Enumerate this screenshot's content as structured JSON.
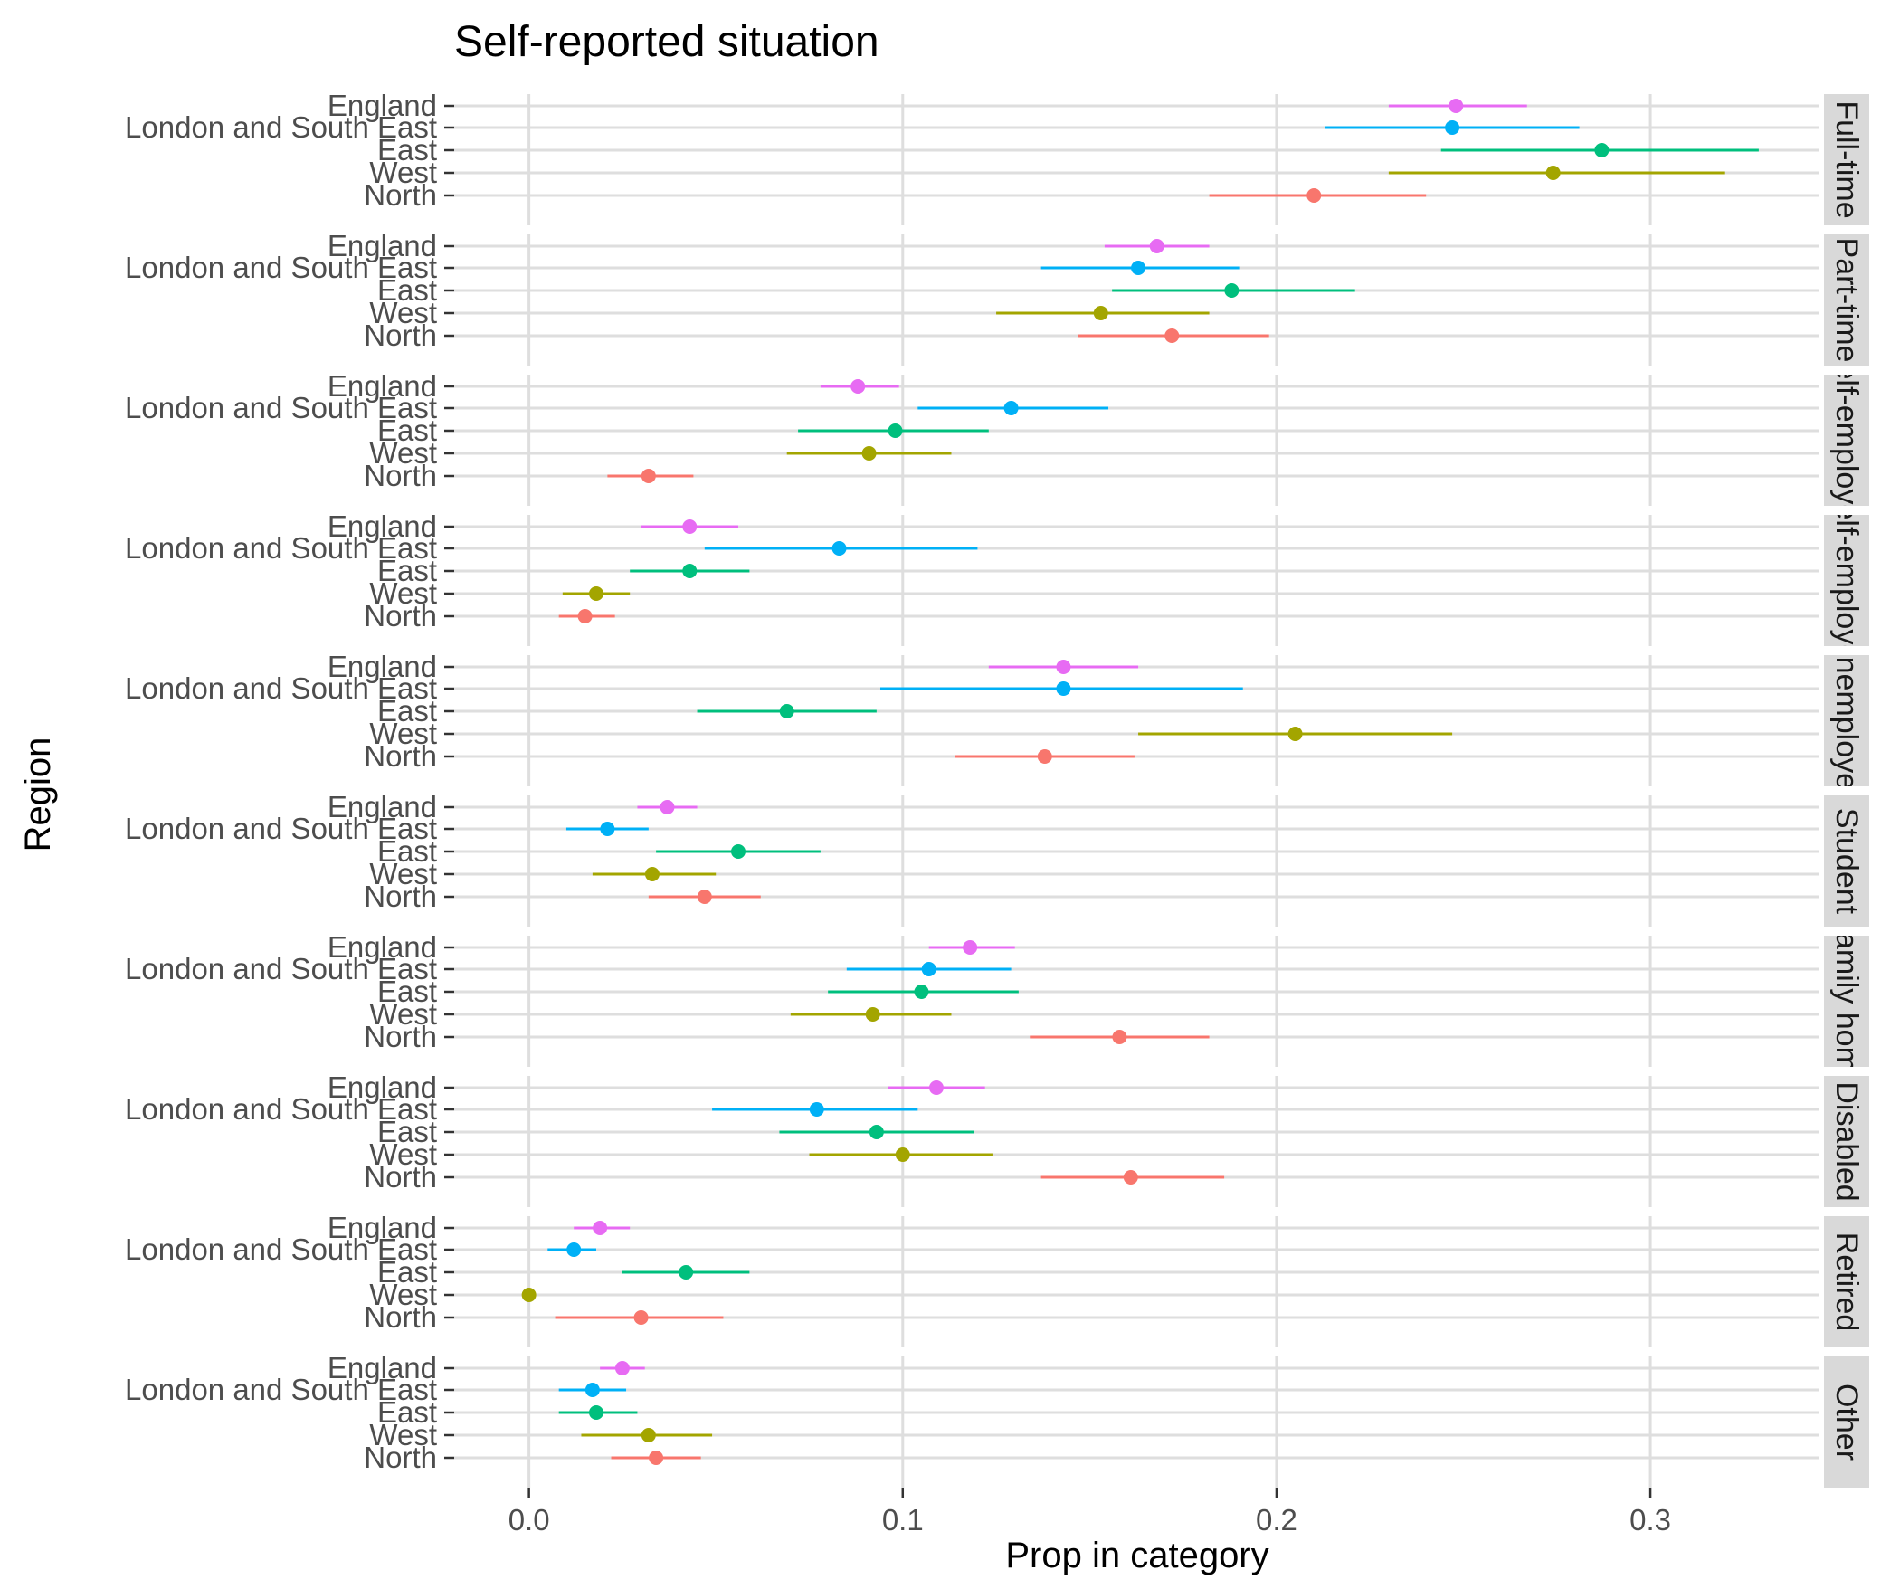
{
  "chart_data": {
    "type": "scatter",
    "title": "Self-reported situation",
    "xlabel": "Prop in category",
    "ylabel": "Region",
    "xlim": [
      -0.02,
      0.345
    ],
    "x_ticks": [
      0.0,
      0.1,
      0.2,
      0.3
    ],
    "x_tick_labels": [
      "0.0",
      "0.1",
      "0.2",
      "0.3"
    ],
    "regions": [
      "England",
      "London and South East",
      "East",
      "West",
      "North"
    ],
    "region_colors": {
      "England": "#E76BF3",
      "London and South East": "#00B0F6",
      "East": "#00BF7D",
      "West": "#A3A500",
      "North": "#F8766D"
    },
    "grid": true,
    "legend": "none",
    "panels": [
      {
        "label": "Full-time",
        "points": [
          {
            "region": "England",
            "x": 0.248,
            "low": 0.23,
            "high": 0.267
          },
          {
            "region": "London and South East",
            "x": 0.247,
            "low": 0.213,
            "high": 0.281
          },
          {
            "region": "East",
            "x": 0.287,
            "low": 0.244,
            "high": 0.329
          },
          {
            "region": "West",
            "x": 0.274,
            "low": 0.23,
            "high": 0.32
          },
          {
            "region": "North",
            "x": 0.21,
            "low": 0.182,
            "high": 0.24
          }
        ]
      },
      {
        "label": "Part-time",
        "points": [
          {
            "region": "England",
            "x": 0.168,
            "low": 0.154,
            "high": 0.182
          },
          {
            "region": "London and South East",
            "x": 0.163,
            "low": 0.137,
            "high": 0.19
          },
          {
            "region": "East",
            "x": 0.188,
            "low": 0.156,
            "high": 0.221
          },
          {
            "region": "West",
            "x": 0.153,
            "low": 0.125,
            "high": 0.182
          },
          {
            "region": "North",
            "x": 0.172,
            "low": 0.147,
            "high": 0.198
          }
        ]
      },
      {
        "label": "Self-employed",
        "points": [
          {
            "region": "England",
            "x": 0.088,
            "low": 0.078,
            "high": 0.099
          },
          {
            "region": "London and South East",
            "x": 0.129,
            "low": 0.104,
            "high": 0.155
          },
          {
            "region": "East",
            "x": 0.098,
            "low": 0.072,
            "high": 0.123
          },
          {
            "region": "West",
            "x": 0.091,
            "low": 0.069,
            "high": 0.113
          },
          {
            "region": "North",
            "x": 0.032,
            "low": 0.021,
            "high": 0.044
          }
        ]
      },
      {
        "label": "Self-employed",
        "points": [
          {
            "region": "England",
            "x": 0.043,
            "low": 0.03,
            "high": 0.056
          },
          {
            "region": "London and South East",
            "x": 0.083,
            "low": 0.047,
            "high": 0.12
          },
          {
            "region": "East",
            "x": 0.043,
            "low": 0.027,
            "high": 0.059
          },
          {
            "region": "West",
            "x": 0.018,
            "low": 0.009,
            "high": 0.027
          },
          {
            "region": "North",
            "x": 0.015,
            "low": 0.008,
            "high": 0.023
          }
        ]
      },
      {
        "label": "Unemployed",
        "points": [
          {
            "region": "England",
            "x": 0.143,
            "low": 0.123,
            "high": 0.163
          },
          {
            "region": "London and South East",
            "x": 0.143,
            "low": 0.094,
            "high": 0.191
          },
          {
            "region": "East",
            "x": 0.069,
            "low": 0.045,
            "high": 0.093
          },
          {
            "region": "West",
            "x": 0.205,
            "low": 0.163,
            "high": 0.247
          },
          {
            "region": "North",
            "x": 0.138,
            "low": 0.114,
            "high": 0.162
          }
        ]
      },
      {
        "label": "Student",
        "points": [
          {
            "region": "England",
            "x": 0.037,
            "low": 0.029,
            "high": 0.045
          },
          {
            "region": "London and South East",
            "x": 0.021,
            "low": 0.01,
            "high": 0.032
          },
          {
            "region": "East",
            "x": 0.056,
            "low": 0.034,
            "high": 0.078
          },
          {
            "region": "West",
            "x": 0.033,
            "low": 0.017,
            "high": 0.05
          },
          {
            "region": "North",
            "x": 0.047,
            "low": 0.032,
            "high": 0.062
          }
        ]
      },
      {
        "label": "Family home",
        "points": [
          {
            "region": "England",
            "x": 0.118,
            "low": 0.107,
            "high": 0.13
          },
          {
            "region": "London and South East",
            "x": 0.107,
            "low": 0.085,
            "high": 0.129
          },
          {
            "region": "East",
            "x": 0.105,
            "low": 0.08,
            "high": 0.131
          },
          {
            "region": "West",
            "x": 0.092,
            "low": 0.07,
            "high": 0.113
          },
          {
            "region": "North",
            "x": 0.158,
            "low": 0.134,
            "high": 0.182
          }
        ]
      },
      {
        "label": "Disabled",
        "points": [
          {
            "region": "England",
            "x": 0.109,
            "low": 0.096,
            "high": 0.122
          },
          {
            "region": "London and South East",
            "x": 0.077,
            "low": 0.049,
            "high": 0.104
          },
          {
            "region": "East",
            "x": 0.093,
            "low": 0.067,
            "high": 0.119
          },
          {
            "region": "West",
            "x": 0.1,
            "low": 0.075,
            "high": 0.124
          },
          {
            "region": "North",
            "x": 0.161,
            "low": 0.137,
            "high": 0.186
          }
        ]
      },
      {
        "label": "Retired",
        "points": [
          {
            "region": "England",
            "x": 0.019,
            "low": 0.012,
            "high": 0.027
          },
          {
            "region": "London and South East",
            "x": 0.012,
            "low": 0.005,
            "high": 0.018
          },
          {
            "region": "East",
            "x": 0.042,
            "low": 0.025,
            "high": 0.059
          },
          {
            "region": "West",
            "x": 0.0,
            "low": 0.0,
            "high": 0.0
          },
          {
            "region": "North",
            "x": 0.03,
            "low": 0.007,
            "high": 0.052
          }
        ]
      },
      {
        "label": "Other",
        "points": [
          {
            "region": "England",
            "x": 0.025,
            "low": 0.019,
            "high": 0.031
          },
          {
            "region": "London and South East",
            "x": 0.017,
            "low": 0.008,
            "high": 0.026
          },
          {
            "region": "East",
            "x": 0.018,
            "low": 0.008,
            "high": 0.029
          },
          {
            "region": "West",
            "x": 0.032,
            "low": 0.014,
            "high": 0.049
          },
          {
            "region": "North",
            "x": 0.034,
            "low": 0.022,
            "high": 0.046
          }
        ]
      }
    ]
  }
}
